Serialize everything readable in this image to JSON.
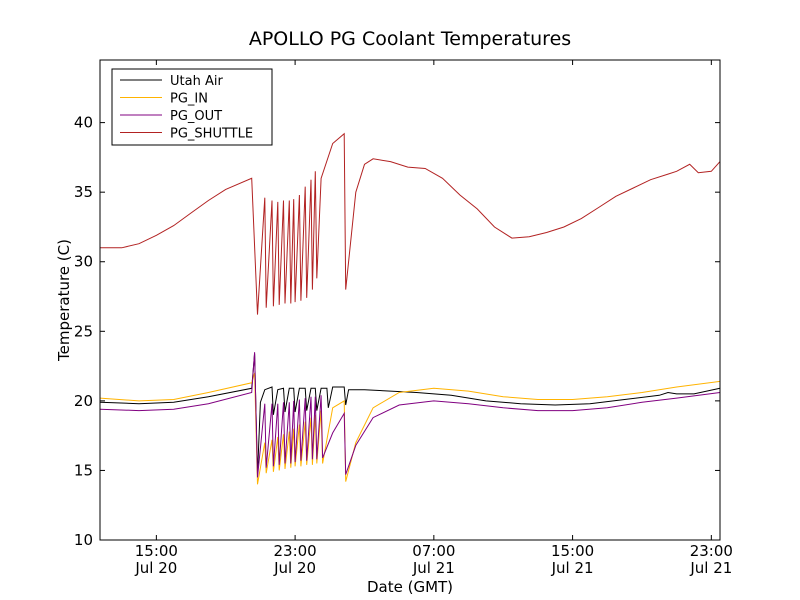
{
  "chart_data": {
    "type": "line",
    "title": "APOLLO PG Coolant Temperatures",
    "xlabel": "Date (GMT)",
    "ylabel": "Temperature (C)",
    "x_unit": "datetime (GMT)",
    "xlim": [
      "2014-07-20T11:45",
      "2014-07-21T23:30"
    ],
    "ylim": [
      10,
      44.5
    ],
    "yticks": [
      10,
      15,
      20,
      25,
      30,
      35,
      40
    ],
    "xticks": [
      {
        "t": "2014-07-20T15:00",
        "line1": "15:00",
        "line2": "Jul 20"
      },
      {
        "t": "2014-07-20T23:00",
        "line1": "23:00",
        "line2": "Jul 20"
      },
      {
        "t": "2014-07-21T07:00",
        "line1": "07:00",
        "line2": "Jul 21"
      },
      {
        "t": "2014-07-21T15:00",
        "line1": "15:00",
        "line2": "Jul 21"
      },
      {
        "t": "2014-07-21T23:00",
        "line1": "23:00",
        "line2": "Jul 21"
      }
    ],
    "grid": false,
    "legend_position": "top-left",
    "series": [
      {
        "name": "Utah Air",
        "color": "#000000",
        "points": [
          [
            "2014-07-20T11:45",
            19.9
          ],
          [
            "2014-07-20T14:00",
            19.8
          ],
          [
            "2014-07-20T16:00",
            19.9
          ],
          [
            "2014-07-20T18:00",
            20.3
          ],
          [
            "2014-07-20T20:30",
            20.9
          ],
          [
            "2014-07-20T20:40",
            23.4
          ],
          [
            "2014-07-20T20:50",
            14.7
          ],
          [
            "2014-07-20T21:00",
            19.9
          ],
          [
            "2014-07-20T21:15",
            20.8
          ],
          [
            "2014-07-20T21:40",
            21.0
          ],
          [
            "2014-07-20T21:45",
            19.0
          ],
          [
            "2014-07-20T22:00",
            20.8
          ],
          [
            "2014-07-20T22:20",
            20.9
          ],
          [
            "2014-07-20T22:25",
            19.2
          ],
          [
            "2014-07-20T22:40",
            20.9
          ],
          [
            "2014-07-20T22:55",
            20.9
          ],
          [
            "2014-07-20T23:00",
            19.2
          ],
          [
            "2014-07-20T23:15",
            20.9
          ],
          [
            "2014-07-20T23:35",
            20.9
          ],
          [
            "2014-07-20T23:40",
            19.3
          ],
          [
            "2014-07-20T23:55",
            20.9
          ],
          [
            "2014-07-21T00:10",
            20.9
          ],
          [
            "2014-07-21T00:15",
            19.3
          ],
          [
            "2014-07-21T00:30",
            20.9
          ],
          [
            "2014-07-21T00:50",
            20.9
          ],
          [
            "2014-07-21T00:55",
            19.5
          ],
          [
            "2014-07-21T01:10",
            21.0
          ],
          [
            "2014-07-21T01:50",
            21.0
          ],
          [
            "2014-07-21T01:55",
            19.7
          ],
          [
            "2014-07-21T02:05",
            20.8
          ],
          [
            "2014-07-21T03:00",
            20.8
          ],
          [
            "2014-07-21T06:00",
            20.6
          ],
          [
            "2014-07-21T08:00",
            20.4
          ],
          [
            "2014-07-21T10:00",
            20.0
          ],
          [
            "2014-07-21T12:00",
            19.8
          ],
          [
            "2014-07-21T14:00",
            19.7
          ],
          [
            "2014-07-21T16:00",
            19.8
          ],
          [
            "2014-07-21T18:00",
            20.1
          ],
          [
            "2014-07-21T20:00",
            20.4
          ],
          [
            "2014-07-21T20:30",
            20.6
          ],
          [
            "2014-07-21T21:00",
            20.5
          ],
          [
            "2014-07-21T22:00",
            20.5
          ],
          [
            "2014-07-21T23:30",
            20.9
          ]
        ]
      },
      {
        "name": "PG_IN",
        "color": "#FFB300",
        "points": [
          [
            "2014-07-20T11:45",
            20.2
          ],
          [
            "2014-07-20T14:00",
            20.0
          ],
          [
            "2014-07-20T16:00",
            20.1
          ],
          [
            "2014-07-20T18:00",
            20.6
          ],
          [
            "2014-07-20T20:30",
            21.3
          ],
          [
            "2014-07-20T20:40",
            22.0
          ],
          [
            "2014-07-20T20:50",
            14.0
          ],
          [
            "2014-07-20T21:15",
            17.0
          ],
          [
            "2014-07-20T21:20",
            14.8
          ],
          [
            "2014-07-20T21:40",
            17.2
          ],
          [
            "2014-07-20T21:45",
            14.9
          ],
          [
            "2014-07-20T22:00",
            17.4
          ],
          [
            "2014-07-20T22:05",
            15.0
          ],
          [
            "2014-07-20T22:20",
            17.6
          ],
          [
            "2014-07-20T22:25",
            15.1
          ],
          [
            "2014-07-20T22:40",
            17.8
          ],
          [
            "2014-07-20T22:45",
            15.2
          ],
          [
            "2014-07-20T22:55",
            18.0
          ],
          [
            "2014-07-20T23:00",
            15.3
          ],
          [
            "2014-07-20T23:15",
            18.3
          ],
          [
            "2014-07-20T23:20",
            15.3
          ],
          [
            "2014-07-20T23:35",
            18.5
          ],
          [
            "2014-07-20T23:40",
            15.4
          ],
          [
            "2014-07-20T23:55",
            18.8
          ],
          [
            "2014-07-21T00:00",
            15.4
          ],
          [
            "2014-07-21T00:10",
            19.0
          ],
          [
            "2014-07-21T00:15",
            15.5
          ],
          [
            "2014-07-21T00:30",
            19.3
          ],
          [
            "2014-07-21T00:35",
            15.5
          ],
          [
            "2014-07-21T01:10",
            19.5
          ],
          [
            "2014-07-21T01:50",
            20.0
          ],
          [
            "2014-07-21T01:55",
            14.2
          ],
          [
            "2014-07-21T02:30",
            17.0
          ],
          [
            "2014-07-21T03:30",
            19.5
          ],
          [
            "2014-07-21T05:00",
            20.6
          ],
          [
            "2014-07-21T07:00",
            20.9
          ],
          [
            "2014-07-21T09:00",
            20.7
          ],
          [
            "2014-07-21T11:00",
            20.3
          ],
          [
            "2014-07-21T13:00",
            20.1
          ],
          [
            "2014-07-21T15:00",
            20.1
          ],
          [
            "2014-07-21T17:00",
            20.3
          ],
          [
            "2014-07-21T19:00",
            20.6
          ],
          [
            "2014-07-21T21:00",
            21.0
          ],
          [
            "2014-07-21T23:30",
            21.4
          ]
        ]
      },
      {
        "name": "PG_OUT",
        "color": "#800080",
        "points": [
          [
            "2014-07-20T11:45",
            19.4
          ],
          [
            "2014-07-20T14:00",
            19.3
          ],
          [
            "2014-07-20T16:00",
            19.4
          ],
          [
            "2014-07-20T18:00",
            19.8
          ],
          [
            "2014-07-20T20:30",
            20.6
          ],
          [
            "2014-07-20T20:40",
            23.5
          ],
          [
            "2014-07-20T20:50",
            14.5
          ],
          [
            "2014-07-20T21:15",
            19.8
          ],
          [
            "2014-07-20T21:20",
            15.2
          ],
          [
            "2014-07-20T21:40",
            19.8
          ],
          [
            "2014-07-20T21:45",
            15.3
          ],
          [
            "2014-07-20T22:00",
            19.8
          ],
          [
            "2014-07-20T22:05",
            15.4
          ],
          [
            "2014-07-20T22:20",
            19.9
          ],
          [
            "2014-07-20T22:25",
            15.5
          ],
          [
            "2014-07-20T22:40",
            19.9
          ],
          [
            "2014-07-20T22:45",
            15.5
          ],
          [
            "2014-07-20T22:55",
            20.0
          ],
          [
            "2014-07-20T23:00",
            15.6
          ],
          [
            "2014-07-20T23:15",
            20.1
          ],
          [
            "2014-07-20T23:20",
            15.7
          ],
          [
            "2014-07-20T23:35",
            20.2
          ],
          [
            "2014-07-20T23:40",
            15.7
          ],
          [
            "2014-07-20T23:55",
            20.3
          ],
          [
            "2014-07-21T00:00",
            15.8
          ],
          [
            "2014-07-21T00:10",
            20.3
          ],
          [
            "2014-07-21T00:15",
            15.8
          ],
          [
            "2014-07-21T00:30",
            20.4
          ],
          [
            "2014-07-21T00:35",
            15.9
          ],
          [
            "2014-07-21T01:10",
            17.7
          ],
          [
            "2014-07-21T01:50",
            19.1
          ],
          [
            "2014-07-21T01:55",
            14.7
          ],
          [
            "2014-07-21T02:30",
            16.8
          ],
          [
            "2014-07-21T03:30",
            18.8
          ],
          [
            "2014-07-21T05:00",
            19.7
          ],
          [
            "2014-07-21T07:00",
            20.0
          ],
          [
            "2014-07-21T09:00",
            19.8
          ],
          [
            "2014-07-21T11:00",
            19.5
          ],
          [
            "2014-07-21T13:00",
            19.3
          ],
          [
            "2014-07-21T15:00",
            19.3
          ],
          [
            "2014-07-21T17:00",
            19.5
          ],
          [
            "2014-07-21T19:00",
            19.9
          ],
          [
            "2014-07-21T21:00",
            20.2
          ],
          [
            "2014-07-21T23:30",
            20.6
          ]
        ]
      },
      {
        "name": "PG_SHUTTLE",
        "color": "#B22222",
        "points": [
          [
            "2014-07-20T11:45",
            31.0
          ],
          [
            "2014-07-20T13:00",
            31.0
          ],
          [
            "2014-07-20T14:00",
            31.3
          ],
          [
            "2014-07-20T15:00",
            31.9
          ],
          [
            "2014-07-20T16:00",
            32.6
          ],
          [
            "2014-07-20T17:00",
            33.5
          ],
          [
            "2014-07-20T18:00",
            34.4
          ],
          [
            "2014-07-20T19:00",
            35.2
          ],
          [
            "2014-07-20T20:30",
            36.0
          ],
          [
            "2014-07-20T20:50",
            26.2
          ],
          [
            "2014-07-20T21:15",
            34.6
          ],
          [
            "2014-07-20T21:20",
            26.7
          ],
          [
            "2014-07-20T21:40",
            34.4
          ],
          [
            "2014-07-20T21:45",
            26.8
          ],
          [
            "2014-07-20T22:00",
            34.3
          ],
          [
            "2014-07-20T22:05",
            26.9
          ],
          [
            "2014-07-20T22:20",
            34.4
          ],
          [
            "2014-07-20T22:25",
            27.0
          ],
          [
            "2014-07-20T22:40",
            34.4
          ],
          [
            "2014-07-20T22:45",
            27.0
          ],
          [
            "2014-07-20T22:55",
            34.5
          ],
          [
            "2014-07-20T23:00",
            27.1
          ],
          [
            "2014-07-20T23:15",
            34.8
          ],
          [
            "2014-07-20T23:20",
            27.2
          ],
          [
            "2014-07-20T23:35",
            35.4
          ],
          [
            "2014-07-20T23:40",
            27.4
          ],
          [
            "2014-07-20T23:55",
            35.9
          ],
          [
            "2014-07-21T00:00",
            28.0
          ],
          [
            "2014-07-21T00:10",
            36.5
          ],
          [
            "2014-07-21T00:15",
            28.8
          ],
          [
            "2014-07-21T00:30",
            36.0
          ],
          [
            "2014-07-21T01:10",
            38.5
          ],
          [
            "2014-07-21T01:50",
            39.2
          ],
          [
            "2014-07-21T01:55",
            28.0
          ],
          [
            "2014-07-21T02:30",
            35.0
          ],
          [
            "2014-07-21T03:00",
            37.0
          ],
          [
            "2014-07-21T03:30",
            37.4
          ],
          [
            "2014-07-21T04:30",
            37.2
          ],
          [
            "2014-07-21T05:30",
            36.8
          ],
          [
            "2014-07-21T06:30",
            36.7
          ],
          [
            "2014-07-21T07:30",
            36.0
          ],
          [
            "2014-07-21T08:30",
            34.8
          ],
          [
            "2014-07-21T09:30",
            33.8
          ],
          [
            "2014-07-21T10:30",
            32.5
          ],
          [
            "2014-07-21T11:30",
            31.7
          ],
          [
            "2014-07-21T12:30",
            31.8
          ],
          [
            "2014-07-21T13:30",
            32.1
          ],
          [
            "2014-07-21T14:30",
            32.5
          ],
          [
            "2014-07-21T15:30",
            33.1
          ],
          [
            "2014-07-21T16:30",
            33.9
          ],
          [
            "2014-07-21T17:30",
            34.7
          ],
          [
            "2014-07-21T18:30",
            35.3
          ],
          [
            "2014-07-21T19:30",
            35.9
          ],
          [
            "2014-07-21T20:30",
            36.3
          ],
          [
            "2014-07-21T21:00",
            36.5
          ],
          [
            "2014-07-21T21:45",
            37.0
          ],
          [
            "2014-07-21T22:15",
            36.4
          ],
          [
            "2014-07-21T23:00",
            36.5
          ],
          [
            "2014-07-21T23:30",
            37.2
          ]
        ]
      }
    ]
  }
}
